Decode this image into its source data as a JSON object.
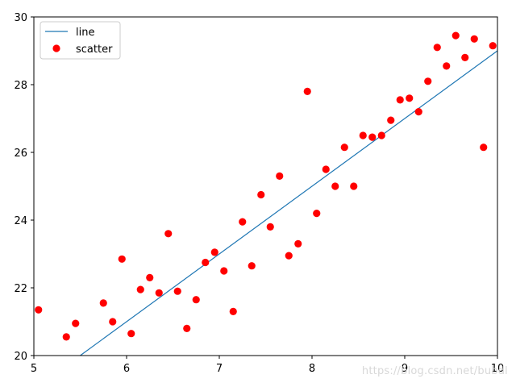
{
  "chart_data": {
    "type": "scatter",
    "xlim": [
      5,
      10
    ],
    "ylim": [
      20,
      30
    ],
    "x_ticks": [
      5,
      6,
      7,
      8,
      9,
      10
    ],
    "y_ticks": [
      20,
      22,
      24,
      26,
      28,
      30
    ],
    "grid": false,
    "legend_position": "top-left",
    "series": [
      {
        "name": "line",
        "kind": "line",
        "color": "#1f77b4",
        "x": [
          5.5,
          10
        ],
        "y": [
          20,
          29
        ]
      },
      {
        "name": "scatter",
        "kind": "scatter",
        "color": "#ff0000",
        "x": [
          5.05,
          5.35,
          5.45,
          5.75,
          5.85,
          5.95,
          6.05,
          6.15,
          6.25,
          6.35,
          6.45,
          6.55,
          6.65,
          6.75,
          6.85,
          6.95,
          7.05,
          7.15,
          7.25,
          7.35,
          7.45,
          7.55,
          7.65,
          7.75,
          7.85,
          7.95,
          8.05,
          8.15,
          8.25,
          8.35,
          8.45,
          8.55,
          8.65,
          8.75,
          8.85,
          8.95,
          9.05,
          9.15,
          9.25,
          9.35,
          9.45,
          9.55,
          9.65,
          9.75,
          9.85,
          9.95
        ],
        "y": [
          21.35,
          20.55,
          20.95,
          21.55,
          21.0,
          22.85,
          20.65,
          21.95,
          22.3,
          21.85,
          23.6,
          21.9,
          20.8,
          21.65,
          22.75,
          23.05,
          22.5,
          21.3,
          23.95,
          22.65,
          24.75,
          23.8,
          25.3,
          22.95,
          23.3,
          27.8,
          24.2,
          25.5,
          25.0,
          26.15,
          25.0,
          26.5,
          26.45,
          26.5,
          26.95,
          27.55,
          27.6,
          27.2,
          28.1,
          29.1,
          28.55,
          29.45,
          28.8,
          29.35,
          26.15,
          29.15
        ]
      }
    ]
  },
  "legend": {
    "items": [
      {
        "label": "line",
        "marker": "line",
        "color": "#1f77b4"
      },
      {
        "label": "scatter",
        "marker": "circle",
        "color": "#ff0000"
      }
    ]
  },
  "watermark": "https://blog.csdn.net/bubdl"
}
